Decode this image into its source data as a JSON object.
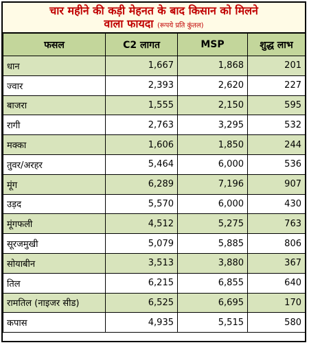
{
  "title": {
    "line1": "चार महीने  की कड़ी मेहनत के बाद किसान को मिलने",
    "line2": "वाला फायदा",
    "unit": "(रूपये प्रति कुंतल)"
  },
  "headers": [
    "फसल",
    "C2 लागत",
    "MSP",
    "शुद्ध लाभ"
  ],
  "rows": [
    {
      "crop": "धान",
      "c2": "1,667",
      "msp": "1,868",
      "profit": "201"
    },
    {
      "crop": "ज्वार",
      "c2": "2,393",
      "msp": "2,620",
      "profit": "227"
    },
    {
      "crop": "बाजरा",
      "c2": "1,555",
      "msp": "2,150",
      "profit": "595"
    },
    {
      "crop": "रागी",
      "c2": "2,763",
      "msp": "3,295",
      "profit": "532"
    },
    {
      "crop": "मक्का",
      "c2": "1,606",
      "msp": "1,850",
      "profit": "244"
    },
    {
      "crop": "तुवर/अरहर",
      "c2": "5,464",
      "msp": "6,000",
      "profit": "536"
    },
    {
      "crop": "मूंग",
      "c2": "6,289",
      "msp": "7,196",
      "profit": "907"
    },
    {
      "crop": "उड़द",
      "c2": "5,570",
      "msp": "6,000",
      "profit": "430"
    },
    {
      "crop": "मूंगफली",
      "c2": "4,512",
      "msp": "5,275",
      "profit": "763"
    },
    {
      "crop": "सूरजमुखी",
      "c2": "5,079",
      "msp": "5,885",
      "profit": "806"
    },
    {
      "crop": "सोयाबीन",
      "c2": "3,513",
      "msp": "3,880",
      "profit": "367"
    },
    {
      "crop": "तिल",
      "c2": "6,215",
      "msp": "6,855",
      "profit": "640"
    },
    {
      "crop": "रामतिल (नाइजर सीड)",
      "c2": "6,525",
      "msp": "6,695",
      "profit": "170"
    },
    {
      "crop": "कपास",
      "c2": "4,935",
      "msp": "5,515",
      "profit": "580"
    }
  ],
  "colors": {
    "title_text": "#c00000",
    "header_bg": "#c3d69b",
    "row_shade": "#d8e4bc",
    "row_plain": "#ffffff"
  }
}
